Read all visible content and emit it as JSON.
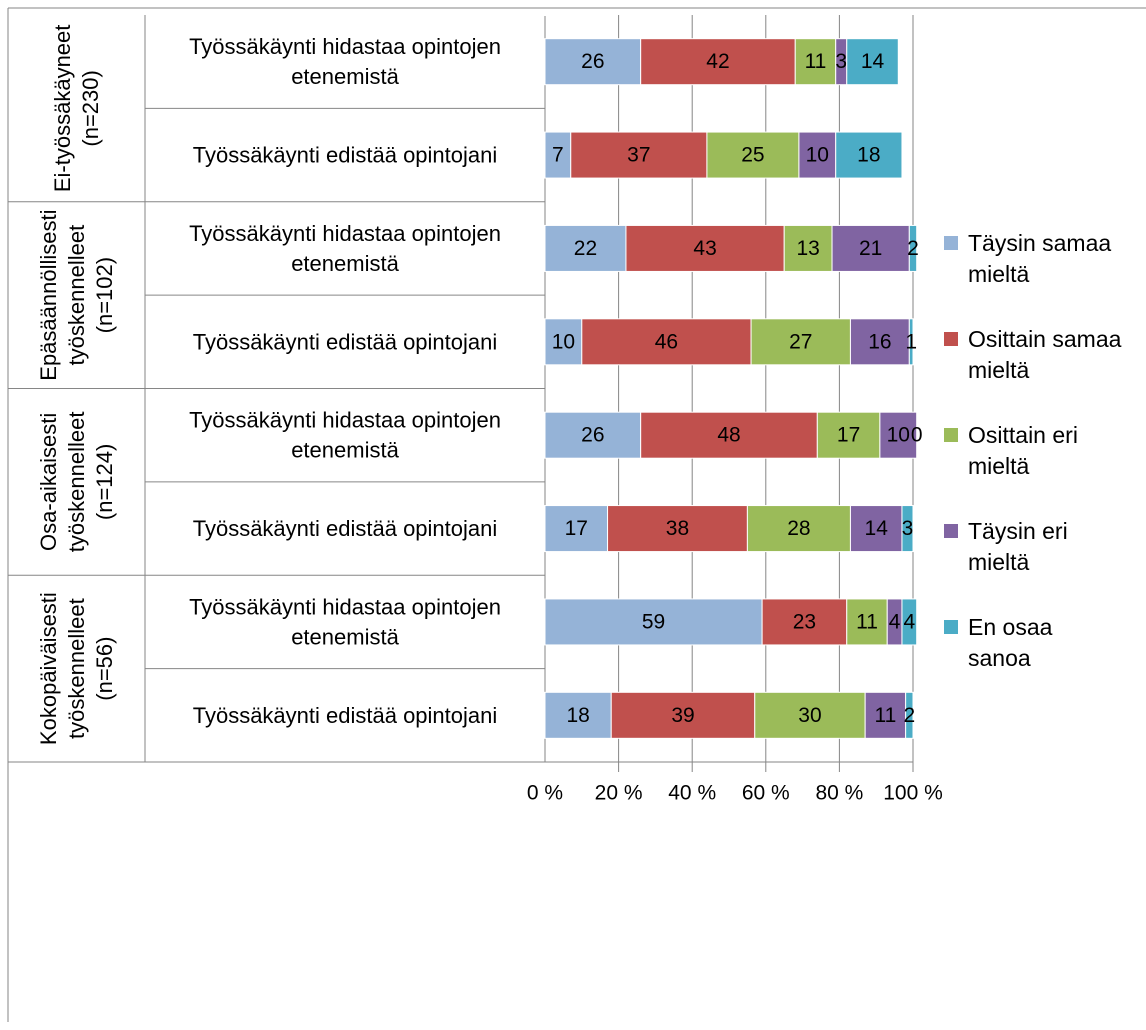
{
  "chart_data": {
    "type": "bar",
    "stacked": true,
    "percent_axis": true,
    "orientation": "horizontal",
    "xlim": [
      0,
      100
    ],
    "x_ticks": [
      "0 %",
      "20 %",
      "40 %",
      "60 %",
      "80 %",
      "100 %"
    ],
    "grid": "vertical",
    "legend_position": "right",
    "legend": [
      "Täysin samaa mieltä",
      "Osittain samaa mieltä",
      "Osittain eri mieltä",
      "Täysin eri mieltä",
      "En osaa sanoa"
    ],
    "colors": [
      "#95b3d7",
      "#c0504d",
      "#9bbb59",
      "#8064a2",
      "#4bacc6"
    ],
    "groups": [
      {
        "label_lines": [
          "Ei-työssäkäyneet",
          "(n=230)"
        ],
        "rows": [
          {
            "label_lines": [
              "Työssäkäynti hidastaa opintojen",
              "etenemistä"
            ],
            "values": [
              26,
              42,
              11,
              3,
              14
            ],
            "labels": [
              "26",
              "42",
              "11",
              "3",
              "14"
            ]
          },
          {
            "label_lines": [
              "Työssäkäynti edistää opintojani"
            ],
            "values": [
              7,
              37,
              25,
              10,
              18
            ],
            "labels": [
              "7",
              "37",
              "25",
              "10",
              "18"
            ]
          }
        ]
      },
      {
        "label_lines": [
          "Epäsäännöllisesti",
          "työskennelleet",
          "(n=102)"
        ],
        "rows": [
          {
            "label_lines": [
              "Työssäkäynti hidastaa opintojen",
              "etenemistä"
            ],
            "values": [
              22,
              43,
              13,
              21,
              2
            ],
            "labels": [
              "22",
              "43",
              "13",
              "21",
              "2"
            ]
          },
          {
            "label_lines": [
              "Työssäkäynti edistää opintojani"
            ],
            "values": [
              10,
              46,
              27,
              16,
              1
            ],
            "labels": [
              "10",
              "46",
              "27",
              "16",
              "1"
            ]
          }
        ]
      },
      {
        "label_lines": [
          "Osa-aikaisesti",
          "työskennelleet",
          "(n=124)"
        ],
        "rows": [
          {
            "label_lines": [
              "Työssäkäynti hidastaa opintojen",
              "etenemistä"
            ],
            "values": [
              26,
              48,
              17,
              10,
              0
            ],
            "labels": [
              "26",
              "48",
              "17",
              "10",
              "0"
            ]
          },
          {
            "label_lines": [
              "Työssäkäynti edistää opintojani"
            ],
            "values": [
              17,
              38,
              28,
              14,
              3
            ],
            "labels": [
              "17",
              "38",
              "28",
              "14",
              "3"
            ]
          }
        ]
      },
      {
        "label_lines": [
          "Kokopäiväisesti",
          "työskennelleet",
          "(n=56)"
        ],
        "rows": [
          {
            "label_lines": [
              "Työssäkäynti hidastaa opintojen",
              "etenemistä"
            ],
            "values": [
              59,
              23,
              11,
              4,
              4
            ],
            "labels": [
              "59",
              "23",
              "11",
              "4",
              "4"
            ]
          },
          {
            "label_lines": [
              "Työssäkäynti edistää opintojani"
            ],
            "values": [
              18,
              39,
              30,
              11,
              2
            ],
            "labels": [
              "18",
              "39",
              "30",
              "11",
              "2"
            ]
          }
        ]
      }
    ]
  }
}
